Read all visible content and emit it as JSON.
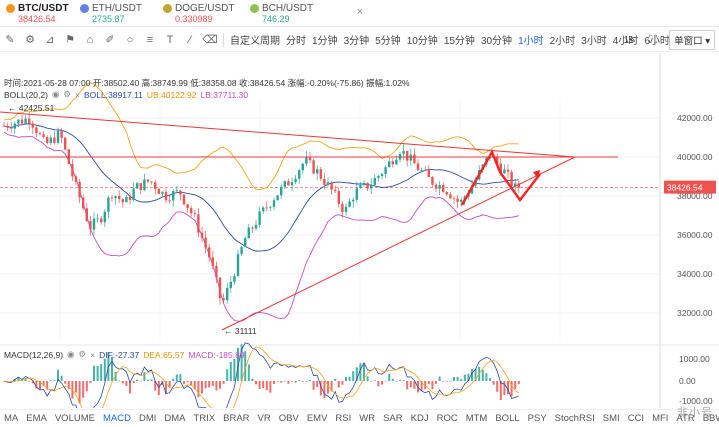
{
  "tickers": [
    {
      "symbol": "BTC/USDT",
      "price": "38426.54",
      "trend": "down",
      "color": "#f7931a",
      "active": true
    },
    {
      "symbol": "ETH/USDT",
      "price": "2735.87",
      "trend": "up",
      "color": "#627eea",
      "active": false
    },
    {
      "symbol": "DOGE/USDT",
      "price": "0.330989",
      "trend": "down",
      "color": "#c2a633",
      "active": false
    },
    {
      "symbol": "BCH/USDT",
      "price": "746.29",
      "trend": "up",
      "color": "#8dc351",
      "active": false
    }
  ],
  "close_icon": "×",
  "toolbar": {
    "period_label": "自定义周期",
    "timeframes": [
      "分时",
      "1分钟",
      "3分钟",
      "5分钟",
      "10分钟",
      "15分钟",
      "30分钟",
      "1小时",
      "2小时",
      "3小时",
      "4小时",
      "6小时"
    ],
    "active_timeframe": "1小时",
    "right_label": "1s",
    "window_select": "单窗口"
  },
  "info": {
    "time": "时间:2021-05-28 07:00",
    "open": "开:38502.40",
    "high": "高:38749.99",
    "low": "低:38358.08",
    "close": "收:38426.54",
    "change": "涨幅:-0.20%(-75.86)",
    "amplitude": "振幅:1.02%"
  },
  "boll": {
    "label": "BOLL(20,2)",
    "boll": "BOLL:38917.11",
    "ub": "UB:40122.92",
    "lb": "LB:37711.30"
  },
  "macd": {
    "label": "MACD(12,26,9)",
    "dif": "DIF:-27.37",
    "dea": "DEA:65.57",
    "macd": "MACD:-185.89"
  },
  "colors": {
    "up": "#26a69a",
    "down": "#ef5350",
    "boll_mid": "#2b4aa8",
    "boll_ub": "#f2a51a",
    "boll_lb": "#c34fc3",
    "trend": "#e83838",
    "arrow": "#ff2222"
  },
  "chart_data": {
    "type": "candlestick",
    "y_ticks": [
      "42000.00",
      "40000.00",
      "38000.00",
      "36000.00",
      "34000.00",
      "32000.00"
    ],
    "current_price": "38426.54",
    "annotations": {
      "high": "42425.51",
      "low": "31111"
    },
    "macd_ticks": [
      "1000.00",
      "0.00",
      "-1000.00"
    ],
    "ylim": [
      31000,
      43500
    ]
  },
  "indicators": [
    "MA",
    "EMA",
    "VOLUME",
    "MACD",
    "DMI",
    "DMA",
    "TRIX",
    "BRAR",
    "VR",
    "OBV",
    "EMV",
    "RSI",
    "WR",
    "SAR",
    "KDJ",
    "ROC",
    "MTM",
    "BOLL",
    "PSY",
    "StochRSI",
    "SMI",
    "CCI",
    "MFI",
    "ATR",
    "BBW"
  ],
  "active_indicator": "MACD",
  "watermark": "非小号"
}
